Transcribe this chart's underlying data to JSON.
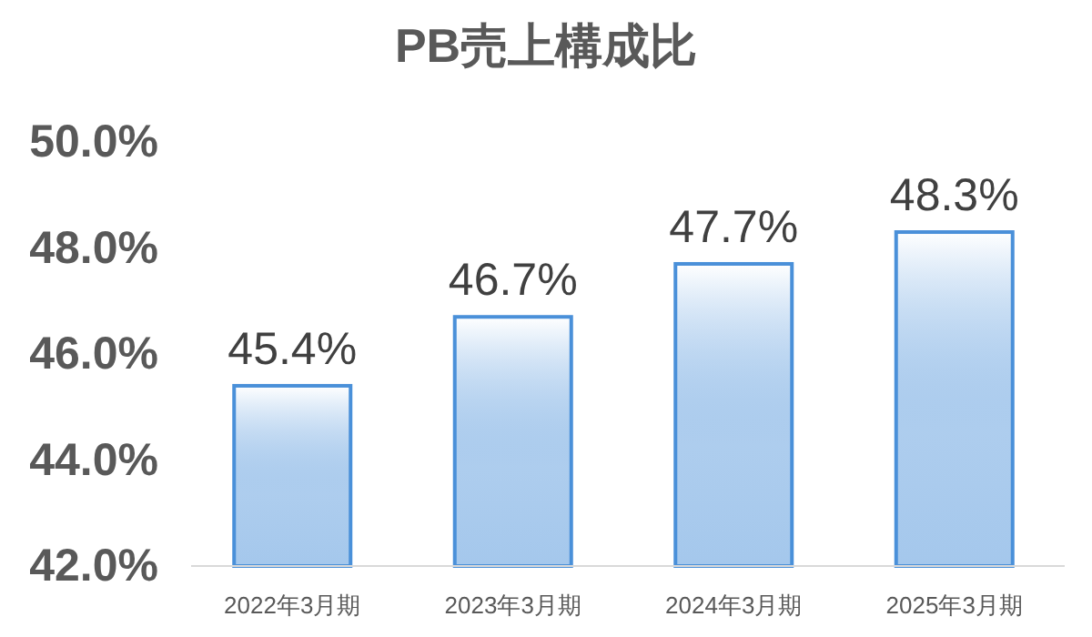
{
  "chart_data": {
    "type": "bar",
    "title": "PB売上構成比",
    "categories": [
      "2022年3月期",
      "2023年3月期",
      "2024年3月期",
      "2025年3月期"
    ],
    "values": [
      45.4,
      46.7,
      47.7,
      48.3
    ],
    "value_labels": [
      "45.4%",
      "46.7%",
      "47.7%",
      "48.3%"
    ],
    "color": "#4a90d9",
    "ylim": [
      42,
      50
    ],
    "yticks": [
      {
        "value": 42,
        "label": "42.0%"
      },
      {
        "value": 44,
        "label": "44.0%"
      },
      {
        "value": 46,
        "label": "46.0%"
      },
      {
        "value": 48,
        "label": "48.0%"
      },
      {
        "value": 50,
        "label": "50.0%"
      }
    ],
    "grid": false
  }
}
